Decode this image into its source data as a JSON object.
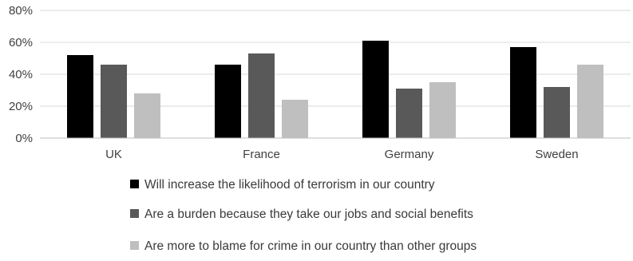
{
  "chart_data": {
    "type": "bar",
    "categories": [
      "UK",
      "France",
      "Germany",
      "Sweden"
    ],
    "series": [
      {
        "name": "Will increase the likelihood of terrorism in our country",
        "values": [
          52,
          46,
          61,
          57
        ],
        "color": "#000000"
      },
      {
        "name": "Are a burden because they take our jobs and social benefits",
        "values": [
          46,
          53,
          31,
          32
        ],
        "color": "#595959"
      },
      {
        "name": "Are more to blame for crime in our country than other groups",
        "values": [
          28,
          24,
          35,
          46
        ],
        "color": "#bfbfbf"
      }
    ],
    "y_ticks": [
      "0%",
      "20%",
      "40%",
      "60%",
      "80%"
    ],
    "ylim": [
      0,
      80
    ],
    "grid": true,
    "legend_position": "bottom",
    "title": "",
    "xlabel": "",
    "ylabel": ""
  }
}
